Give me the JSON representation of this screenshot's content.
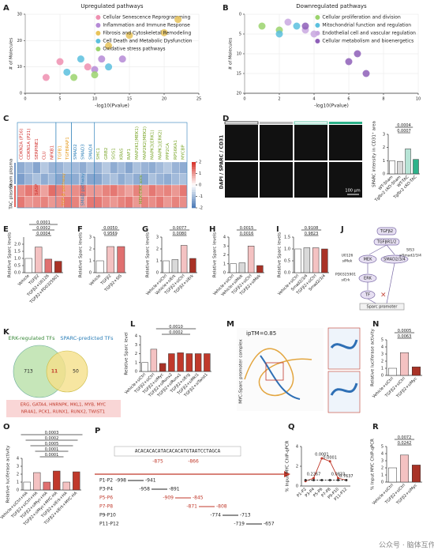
{
  "watermark": "公众号 · 脑体互作研究院",
  "chart_data": [
    {
      "panel": "A",
      "type": "scatter",
      "title": "Upregulated pathways",
      "xlabel": "-log10(Pvalue)",
      "ylabel": "# of Molecules",
      "xlim": [
        0,
        25
      ],
      "xticks": [
        0,
        5,
        10,
        15,
        20,
        25
      ],
      "ylim": [
        0,
        30
      ],
      "yticks": [
        0,
        10,
        20,
        30
      ],
      "grid": true,
      "legend": "upper right",
      "series": [
        {
          "name": "Cellular Senescence Reprogramming",
          "color": "#ee8fb0",
          "x": [
            3,
            5,
            9
          ],
          "y": [
            6,
            12,
            10
          ]
        },
        {
          "name": "Inflammation and Immune Response",
          "color": "#b58ad6",
          "x": [
            10,
            11,
            14
          ],
          "y": [
            9,
            13,
            13
          ]
        },
        {
          "name": "Fibrosis and Cytoskeletal Remodeling",
          "color": "#e8c35a",
          "x": [
            12,
            15,
            20,
            22
          ],
          "y": [
            18,
            22,
            23,
            28
          ]
        },
        {
          "name": "Cell Death and Metabolic Dysfunction",
          "color": "#5bc0de",
          "x": [
            6,
            8,
            12
          ],
          "y": [
            8,
            13,
            10
          ]
        },
        {
          "name": "Oxidative stress pathways",
          "color": "#9bd36d",
          "x": [
            7,
            10
          ],
          "y": [
            6,
            7
          ]
        }
      ]
    },
    {
      "panel": "B",
      "type": "scatter",
      "title": "Downregulated pathways",
      "xlabel": "-log10(Pvalue)",
      "ylabel": "# of Molecules",
      "xlim": [
        0,
        10
      ],
      "xticks": [
        0,
        2,
        4,
        6,
        8,
        10
      ],
      "ylim": [
        0,
        20
      ],
      "yticks": [
        0,
        5,
        10,
        15,
        20
      ],
      "yreverse": true,
      "grid": true,
      "legend": "upper right",
      "series": [
        {
          "name": "Cellular proliferation and division",
          "color": "#9bd36d",
          "x": [
            1,
            2
          ],
          "y": [
            3,
            4
          ]
        },
        {
          "name": "Mitochondrial function and regulation",
          "color": "#5bc0de",
          "x": [
            2,
            3
          ],
          "y": [
            5,
            3
          ]
        },
        {
          "name": "Endothelial cell and vascular regulation",
          "color": "#c9a8e0",
          "x": [
            2.5,
            3.5,
            4
          ],
          "y": [
            2,
            4,
            5
          ]
        },
        {
          "name": "Cellular metabolism and bioenergetics",
          "color": "#8e5fb8",
          "x": [
            3.5,
            6,
            6.5,
            7
          ],
          "y": [
            3,
            12,
            10,
            15
          ]
        }
      ]
    },
    {
      "panel": "C",
      "type": "heatmap",
      "row_groups": [
        "Sham plasma",
        "TAC plasma"
      ],
      "row_count": [
        2,
        2
      ],
      "clim": [
        -2,
        2
      ],
      "cticks": [
        -2,
        -1,
        0,
        1,
        2
      ],
      "column_groups": [
        {
          "name": "SASP",
          "color": "#d0312d",
          "columns": [
            "CDKN2A (P16)",
            "CDKN1A (P21)",
            "SERPINE1",
            "CLU",
            "NFKB1"
          ],
          "values": [
            [
              -1.2,
              -1.0,
              -1.3,
              -0.8,
              -1.1
            ],
            [
              -1.4,
              -1.1,
              -0.9,
              -1.2,
              -1.0
            ],
            [
              1.1,
              1.3,
              1.2,
              0.9,
              1.4
            ],
            [
              1.3,
              1.0,
              1.1,
              1.2,
              1.0
            ]
          ]
        },
        {
          "name": "TGF-β pathway",
          "color": "#e69a1c",
          "columns": [
            "TGFB1",
            "TGFBRAP1"
          ],
          "values": [
            [
              -1.1,
              -0.9
            ],
            [
              -1.3,
              -1.2
            ],
            [
              1.2,
              1.0
            ],
            [
              1.1,
              1.3
            ]
          ]
        },
        {
          "name": "SMAD pathway",
          "color": "#2c7fb8",
          "columns": [
            "SMAD2",
            "SMAD3",
            "SMAD4"
          ],
          "values": [
            [
              -1.0,
              -1.2,
              -0.9
            ],
            [
              -1.2,
              -1.0,
              -1.3
            ],
            [
              1.1,
              1.3,
              1.0
            ],
            [
              1.2,
              0.9,
              1.3
            ]
          ]
        },
        {
          "name": "MEK-ERK axis",
          "color": "#7aa52a",
          "columns": [
            "SHC1",
            "GRB2",
            "SOS1",
            "KRAS",
            "RAF1",
            "MAP2K1(MEK1)",
            "MAP2K2(MEK2)",
            "MAPK3(ERK1)",
            "MAPK1(ERK2)",
            "PPP2CA",
            "RPS6KA1",
            "MYCBP"
          ],
          "values": [
            [
              -1.1,
              -0.8,
              -1.2,
              -1.0,
              -1.3,
              -0.9,
              -1.1,
              -1.2,
              -1.0,
              -0.8,
              -1.1,
              -1.2
            ],
            [
              -1.3,
              -1.0,
              -0.9,
              -1.2,
              -1.0,
              -1.2,
              -1.3,
              -0.9,
              -1.1,
              -1.2,
              -1.0,
              -0.9
            ],
            [
              1.0,
              1.2,
              1.3,
              1.1,
              0.9,
              1.2,
              1.0,
              1.3,
              1.1,
              1.2,
              1.0,
              1.3
            ],
            [
              1.3,
              1.1,
              1.0,
              1.2,
              1.3,
              1.0,
              1.2,
              1.1,
              1.3,
              1.0,
              1.2,
              1.1
            ]
          ]
        }
      ]
    },
    {
      "panel": "D",
      "type": "bar",
      "ylabel": "SPARC intensity in CD31⁺ area",
      "ylim": [
        0,
        3
      ],
      "yticks": [
        0,
        1,
        2,
        3
      ],
      "categories": [
        "WT-Sham",
        "Tgfbr2 cKO-Sham",
        "WT-TAC",
        "Tgfbr2 cKO-TAC"
      ],
      "values": [
        1.0,
        0.95,
        1.9,
        1.1
      ],
      "colors": [
        "#ffffff",
        "#d9d9d9",
        "#b7e4d6",
        "#2db28a"
      ],
      "pvalues": [
        "0.0007",
        "0.0004"
      ]
    },
    {
      "panel": "E",
      "type": "bar",
      "ylabel": "Relative Sparc levels",
      "ylim": [
        0,
        2.5
      ],
      "yticks": [
        {
          "value": 0,
          "label": "0.0"
        },
        {
          "value": 0.5,
          "label": "0.5"
        },
        {
          "value": 1,
          "label": "1.0"
        },
        {
          "value": 1.5,
          "label": "1.5"
        },
        {
          "value": 2,
          "label": "2.0"
        }
      ],
      "categories": [
        "Vehicle",
        "TGFβ2",
        "TGFβ2+U0126",
        "TGFβ2+PD0325901"
      ],
      "values": [
        1.0,
        1.8,
        0.95,
        0.8
      ],
      "colors": [
        "#ffffff",
        "#f4c2c2",
        "#e07070",
        "#a93226"
      ],
      "pvalues": [
        "0.0004",
        "0.0002",
        "0.0001"
      ]
    },
    {
      "panel": "F",
      "type": "bar",
      "ylabel": "Relative Sparc levels",
      "ylim": [
        0,
        3
      ],
      "yticks": [
        0,
        1,
        2,
        3
      ],
      "categories": [
        "Vehicle",
        "TGFβ2",
        "TGFβ2+SIS"
      ],
      "values": [
        1.0,
        2.2,
        2.2
      ],
      "colors": [
        "#ffffff",
        "#f4c2c2",
        "#e07070"
      ],
      "pvalues": [
        "0.9569",
        "0.0050"
      ]
    },
    {
      "panel": "G",
      "type": "bar",
      "ylabel": "Relative Sparc levels",
      "ylim": [
        0,
        3
      ],
      "yticks": [
        0,
        1,
        2,
        3
      ],
      "categories": [
        "Vehicle+siCtrl",
        "Vehicle+siErk",
        "TGFβ2+siCtrl",
        "TGFβ2+siErk"
      ],
      "values": [
        1.0,
        1.1,
        2.3,
        1.2
      ],
      "colors": [
        "#ffffff",
        "#d9d9d9",
        "#f4c2c2",
        "#a93226"
      ],
      "pvalues": [
        "0.0080",
        "0.0077"
      ]
    },
    {
      "panel": "H",
      "type": "bar",
      "ylabel": "Relative Sparc levels",
      "ylim": [
        0,
        4
      ],
      "yticks": [
        0,
        1,
        2,
        3,
        4
      ],
      "categories": [
        "Vehicle+siCtrl",
        "Vehicle+siMek",
        "TGFβ2+siCtrl",
        "TGFβ2+siMek"
      ],
      "values": [
        1.0,
        1.1,
        3.0,
        0.8
      ],
      "colors": [
        "#ffffff",
        "#d9d9d9",
        "#f4c2c2",
        "#a93226"
      ],
      "pvalues": [
        "0.0016",
        "0.0015"
      ]
    },
    {
      "panel": "I",
      "type": "bar",
      "ylabel": "Relative Sparc levels",
      "ylim": [
        0,
        1.5
      ],
      "yticks": [
        {
          "value": 0,
          "label": "0.0"
        },
        {
          "value": 0.5,
          "label": "0.5"
        },
        {
          "value": 1,
          "label": "1.0"
        },
        {
          "value": 1.5,
          "label": "1.5"
        }
      ],
      "categories": [
        "Vehicle+siCtrl",
        "Smad2/3/4",
        "TGFβ2+siCtrl",
        "Smad2/3/4"
      ],
      "values": [
        1.0,
        1.05,
        1.05,
        1.0
      ],
      "colors": [
        "#ffffff",
        "#d9d9d9",
        "#f4c2c2",
        "#a93226"
      ],
      "pvalues": [
        "0.9823",
        "0.9108"
      ]
    },
    {
      "panel": "L",
      "type": "bar",
      "ylabel": "Relative Sparc level",
      "ylim": [
        0,
        4
      ],
      "yticks": [
        0,
        1,
        2,
        3,
        4
      ],
      "categories": [
        "Vehicle+siCtrl",
        "TGFβ2+siCtrl",
        "TGFβ2+siMyc",
        "TGFβ2+siRunx2",
        "TGFβ2+siRunx1",
        "TGFβ2+siErg",
        "TGFβ2+siMkl1",
        "TGFβ2+siTwist1"
      ],
      "values": [
        1.0,
        2.5,
        0.9,
        2.0,
        2.1,
        2.0,
        2.0,
        2.0
      ],
      "colors": [
        "#ffffff",
        "#f4c2c2",
        "#a93226",
        "#c0392b",
        "#c0392b",
        "#c0392b",
        "#c0392b",
        "#c0392b"
      ],
      "pvalues": [
        "0.0002",
        "0.0010"
      ]
    },
    {
      "panel": "N",
      "type": "bar",
      "ylabel": "Relative luciferase activity",
      "ylim": [
        0,
        5
      ],
      "yticks": [
        0,
        1,
        2,
        3,
        4,
        5
      ],
      "categories": [
        "Vehicle+siCtrl",
        "TGFβ2+siCtrl",
        "TGFβ2+siMyc"
      ],
      "values": [
        1.0,
        3.2,
        1.2
      ],
      "colors": [
        "#ffffff",
        "#f4c2c2",
        "#a93226"
      ],
      "pvalues": [
        "0.0063",
        "0.0005"
      ]
    },
    {
      "panel": "O",
      "type": "bar",
      "ylabel": "Relative luciferase activity",
      "ylim": [
        0,
        4
      ],
      "yticks": [
        0,
        1,
        2,
        3,
        4
      ],
      "categories": [
        "Vehicle+siCtrl+HA",
        "TGFβ2+siCtrl+HA",
        "TGFβ2+siMyc+HA",
        "TGFβ2+siMyc+MYC-HA",
        "TGFβ2+siErk+HA",
        "TGFβ2+siErk+MYC-HA"
      ],
      "values": [
        1.0,
        2.2,
        1.0,
        2.4,
        1.0,
        2.3
      ],
      "colors": [
        "#ffffff",
        "#f4c2c2",
        "#e07070",
        "#c0392b",
        "#f4c2c2",
        "#c0392b"
      ],
      "pvalues": [
        "0.0001",
        "0.0001",
        "0.0005",
        "0.0002",
        "0.0003"
      ]
    },
    {
      "panel": "Q",
      "type": "line",
      "ylabel": "% Input MYC ChIP-qPCR",
      "ylim": [
        0,
        4
      ],
      "yticks": [
        0,
        2,
        4
      ],
      "categories": [
        "P1-P2",
        "P3-P4",
        "P5-P6",
        "P7-P8",
        "P9-P10",
        "P11-P12"
      ],
      "series": [
        {
          "color": "#c0392b",
          "values": [
            0.5,
            0.8,
            2.8,
            2.5,
            0.8,
            0.6
          ]
        },
        {
          "color": "#333333",
          "dashed": true,
          "values": [
            0.6,
            0.6,
            0.6,
            0.6,
            0.6,
            0.6
          ]
        }
      ],
      "point_labels": [
        null,
        "0.2267",
        "0.0001",
        "0.0001",
        "0.0833",
        "0.7637"
      ]
    },
    {
      "panel": "R",
      "type": "bar",
      "ylabel": "% Input MYC ChIP-qPCR",
      "ylim": [
        0,
        5
      ],
      "yticks": [
        0,
        1,
        2,
        3,
        4,
        5
      ],
      "categories": [
        "Vehicle+siCtrl",
        "TGFβ2+siCtrl",
        "TGFβ2+siMyc"
      ],
      "values": [
        2.0,
        3.8,
        2.4
      ],
      "colors": [
        "#ffffff",
        "#f4c2c2",
        "#a93226"
      ],
      "pvalues": [
        "0.0242",
        "0.0072"
      ]
    }
  ],
  "panel_d": {
    "stain": "DAPI / SPARC / CD31",
    "scale_bar": "100 μm"
  },
  "panel_j": {
    "panel": "J",
    "ligand": "TGFβ2",
    "receptor": "TGFβR1/2",
    "mek": "MEK",
    "mek_inhibitor": "U0126",
    "mek_si": "siMek",
    "erk": "ERK",
    "erk_inhibitor": "PD0325901",
    "erk_si": "siErk",
    "smad": "SMAD2/3/4",
    "smad_inhibitor": "SIS3",
    "smad_si": "siSmad2/3/4",
    "tf": "TF",
    "promoter": "Sparc promoter"
  },
  "panel_k": {
    "panel": "K",
    "left": "ERK-regulated TFs",
    "right": "SPARC-predicted TFs",
    "left_only": "713",
    "overlap": "11",
    "right_only": "50",
    "tfs": [
      "ERG, GATA4, HNRNPK, MKL1, MYB, MYC",
      "NR4A1, PCK1, RUNX1, RUNX2, TWIST1"
    ]
  },
  "panel_m": {
    "panel": "M",
    "score": "ipTM=0.85",
    "caption": "MYC-Sparc promoter complex"
  },
  "panel_p": {
    "panel": "P",
    "sequence": "ACACACACATACACACATGTAATCCTAGCA",
    "site_start": "-875",
    "site_end": "-866",
    "primers": [
      {
        "name": "P1-P2",
        "start": "-998",
        "end": "-941",
        "color": "#222222"
      },
      {
        "name": "P3-P4",
        "start": "-958",
        "end": "-891",
        "color": "#222222"
      },
      {
        "name": "P5-P6",
        "start": "-909",
        "end": "-845",
        "color": "#c0392b"
      },
      {
        "name": "P7-P8",
        "start": "-871",
        "end": "-808",
        "color": "#c0392b"
      },
      {
        "name": "P9-P10",
        "start": "-774",
        "end": "-713",
        "color": "#222222"
      },
      {
        "name": "P11-P12",
        "start": "-719",
        "end": "-657",
        "color": "#222222"
      }
    ]
  }
}
